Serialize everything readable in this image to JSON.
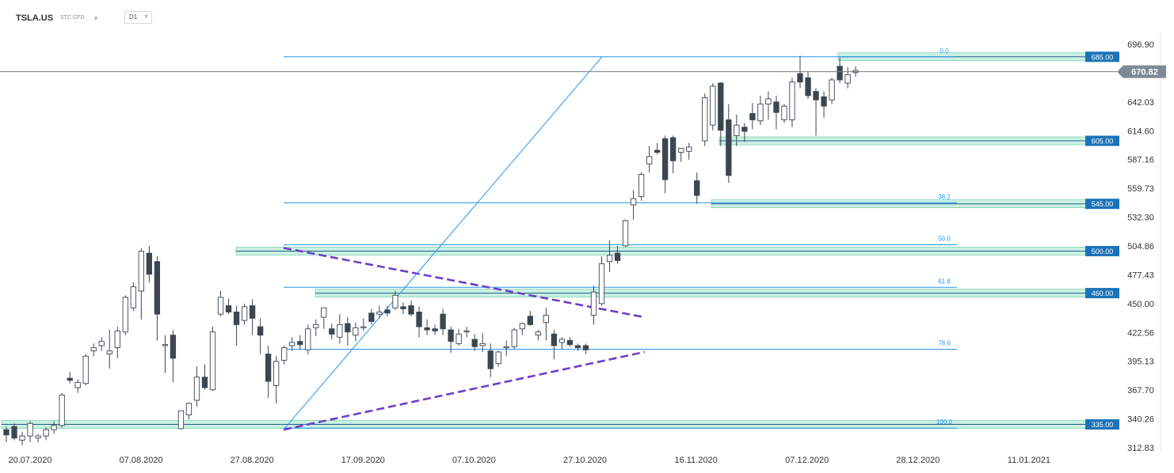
{
  "header": {
    "symbol": "TSLA.US",
    "instrument_type": "STC CFD",
    "timeframe": "D1",
    "icons": [
      "chevron-down-icon",
      "chevron-down-icon"
    ]
  },
  "chart_data": {
    "type": "candlestick",
    "instrument": "TSLA.US",
    "interval": "D1",
    "y_axis": {
      "ticks": [
        696.9,
        670.82,
        642.03,
        614.6,
        587.16,
        559.73,
        532.3,
        504.86,
        477.43,
        450.0,
        422.56,
        395.13,
        367.7,
        340.26,
        312.83
      ],
      "tick_labels": [
        "696.90",
        "670.82",
        "642.03",
        "614.60",
        "587.16",
        "559.73",
        "532.30",
        "504.86",
        "477.43",
        "450.00",
        "422.56",
        "395.13",
        "367.70",
        "340.26",
        "312.83"
      ],
      "range": [
        306,
        711
      ]
    },
    "x_axis": {
      "tick_labels": [
        "20.07.2020",
        "07.08.2020",
        "27.08.2020",
        "17.09.2020",
        "07.10.2020",
        "27.10.2020",
        "16.11.2020",
        "07.12.2020",
        "28.12.2020",
        "11.01.2021"
      ]
    },
    "current_price": {
      "value": 670.82,
      "label": "670.82"
    },
    "horizontal_levels": [
      {
        "value": 685.0,
        "label": "685.00"
      },
      {
        "value": 605.0,
        "label": "605.00"
      },
      {
        "value": 545.0,
        "label": "545.00"
      },
      {
        "value": 500.0,
        "label": "500.00"
      },
      {
        "value": 460.0,
        "label": "460.00"
      },
      {
        "value": 335.0,
        "label": "335.00"
      }
    ],
    "fibonacci": {
      "levels": [
        {
          "ratio": "0.0",
          "value": 685.0
        },
        {
          "ratio": "38.2",
          "value": 546.0
        },
        {
          "ratio": "50.0",
          "value": 506.0
        },
        {
          "ratio": "61.8",
          "value": 465.5
        },
        {
          "ratio": "78.6",
          "value": 406.6
        },
        {
          "ratio": "100.0",
          "value": 331.5
        }
      ]
    },
    "trendlines": [
      {
        "name": "triangle-upper",
        "from": {
          "x": 0.0,
          "y": 503.0
        },
        "to": {
          "x": 0.86,
          "y": 437.0
        }
      },
      {
        "name": "triangle-lower",
        "from": {
          "x": 0.0,
          "y": 330.0
        },
        "to": {
          "x": 0.86,
          "y": 404.0
        }
      },
      {
        "name": "fib-anchor-line",
        "from": {
          "x": 0.0,
          "y": 330.0
        },
        "to": {
          "x": 0.58,
          "y": 685.0
        }
      }
    ],
    "candles": [
      {
        "o": 330,
        "h": 333,
        "l": 318,
        "c": 325
      },
      {
        "o": 333,
        "h": 336,
        "l": 320,
        "c": 322
      },
      {
        "o": 320,
        "h": 328,
        "l": 315,
        "c": 324
      },
      {
        "o": 324,
        "h": 338,
        "l": 318,
        "c": 336
      },
      {
        "o": 322,
        "h": 326,
        "l": 318,
        "c": 324
      },
      {
        "o": 324,
        "h": 332,
        "l": 320,
        "c": 330
      },
      {
        "o": 330,
        "h": 338,
        "l": 326,
        "c": 334
      },
      {
        "o": 334,
        "h": 365,
        "l": 332,
        "c": 363
      },
      {
        "o": 379,
        "h": 385,
        "l": 374,
        "c": 377
      },
      {
        "o": 370,
        "h": 378,
        "l": 365,
        "c": 375
      },
      {
        "o": 374,
        "h": 402,
        "l": 372,
        "c": 400
      },
      {
        "o": 405,
        "h": 412,
        "l": 400,
        "c": 408
      },
      {
        "o": 410,
        "h": 418,
        "l": 405,
        "c": 414
      },
      {
        "o": 402,
        "h": 425,
        "l": 388,
        "c": 405
      },
      {
        "o": 408,
        "h": 428,
        "l": 398,
        "c": 424
      },
      {
        "o": 423,
        "h": 458,
        "l": 420,
        "c": 456
      },
      {
        "o": 446,
        "h": 470,
        "l": 443,
        "c": 466
      },
      {
        "o": 462,
        "h": 503,
        "l": 435,
        "c": 500
      },
      {
        "o": 498,
        "h": 505,
        "l": 470,
        "c": 478
      },
      {
        "o": 490,
        "h": 495,
        "l": 415,
        "c": 440
      },
      {
        "o": 410,
        "h": 420,
        "l": 384,
        "c": 411
      },
      {
        "o": 420,
        "h": 425,
        "l": 375,
        "c": 398
      },
      {
        "o": 331,
        "h": 348,
        "l": 330,
        "c": 348
      },
      {
        "o": 344,
        "h": 356,
        "l": 340,
        "c": 355
      },
      {
        "o": 358,
        "h": 390,
        "l": 352,
        "c": 380
      },
      {
        "o": 380,
        "h": 392,
        "l": 368,
        "c": 370
      },
      {
        "o": 368,
        "h": 428,
        "l": 367,
        "c": 423
      },
      {
        "o": 440,
        "h": 462,
        "l": 438,
        "c": 456
      },
      {
        "o": 448,
        "h": 455,
        "l": 440,
        "c": 442
      },
      {
        "o": 442,
        "h": 448,
        "l": 410,
        "c": 430
      },
      {
        "o": 434,
        "h": 450,
        "l": 430,
        "c": 447
      },
      {
        "o": 448,
        "h": 454,
        "l": 420,
        "c": 436
      },
      {
        "o": 428,
        "h": 436,
        "l": 402,
        "c": 420
      },
      {
        "o": 402,
        "h": 410,
        "l": 360,
        "c": 376
      },
      {
        "o": 372,
        "h": 400,
        "l": 355,
        "c": 395
      },
      {
        "o": 396,
        "h": 410,
        "l": 392,
        "c": 408
      },
      {
        "o": 410,
        "h": 418,
        "l": 405,
        "c": 413
      },
      {
        "o": 414,
        "h": 420,
        "l": 406,
        "c": 411
      },
      {
        "o": 406,
        "h": 430,
        "l": 402,
        "c": 426
      },
      {
        "o": 427,
        "h": 435,
        "l": 419,
        "c": 430
      },
      {
        "o": 437,
        "h": 445,
        "l": 426,
        "c": 446
      },
      {
        "o": 426,
        "h": 431,
        "l": 416,
        "c": 421
      },
      {
        "o": 418,
        "h": 440,
        "l": 412,
        "c": 430
      },
      {
        "o": 431,
        "h": 437,
        "l": 410,
        "c": 423
      },
      {
        "o": 420,
        "h": 432,
        "l": 414,
        "c": 427
      },
      {
        "o": 427,
        "h": 436,
        "l": 424,
        "c": 428
      },
      {
        "o": 441,
        "h": 445,
        "l": 430,
        "c": 433
      },
      {
        "o": 440,
        "h": 448,
        "l": 436,
        "c": 442
      },
      {
        "o": 444,
        "h": 448,
        "l": 438,
        "c": 441
      },
      {
        "o": 446,
        "h": 462,
        "l": 444,
        "c": 458
      },
      {
        "o": 447,
        "h": 451,
        "l": 440,
        "c": 445
      },
      {
        "o": 448,
        "h": 453,
        "l": 438,
        "c": 440
      },
      {
        "o": 442,
        "h": 447,
        "l": 418,
        "c": 428
      },
      {
        "o": 427,
        "h": 435,
        "l": 420,
        "c": 425
      },
      {
        "o": 426,
        "h": 430,
        "l": 420,
        "c": 424
      },
      {
        "o": 440,
        "h": 445,
        "l": 420,
        "c": 426
      },
      {
        "o": 425,
        "h": 428,
        "l": 403,
        "c": 414
      },
      {
        "o": 412,
        "h": 426,
        "l": 410,
        "c": 421
      },
      {
        "o": 423,
        "h": 428,
        "l": 418,
        "c": 424
      },
      {
        "o": 416,
        "h": 421,
        "l": 405,
        "c": 409
      },
      {
        "o": 410,
        "h": 422,
        "l": 404,
        "c": 412
      },
      {
        "o": 405,
        "h": 412,
        "l": 380,
        "c": 388
      },
      {
        "o": 393,
        "h": 405,
        "l": 390,
        "c": 404
      },
      {
        "o": 408,
        "h": 415,
        "l": 400,
        "c": 409
      },
      {
        "o": 409,
        "h": 427,
        "l": 407,
        "c": 425
      },
      {
        "o": 426,
        "h": 432,
        "l": 420,
        "c": 431
      },
      {
        "o": 438,
        "h": 443,
        "l": 429,
        "c": 430
      },
      {
        "o": 420,
        "h": 425,
        "l": 415,
        "c": 423
      },
      {
        "o": 432,
        "h": 446,
        "l": 415,
        "c": 439
      },
      {
        "o": 421,
        "h": 425,
        "l": 397,
        "c": 410
      },
      {
        "o": 413,
        "h": 418,
        "l": 407,
        "c": 416
      },
      {
        "o": 415,
        "h": 418,
        "l": 409,
        "c": 411
      },
      {
        "o": 410,
        "h": 412,
        "l": 405,
        "c": 408
      },
      {
        "o": 410,
        "h": 412,
        "l": 402,
        "c": 406
      },
      {
        "o": 439,
        "h": 467,
        "l": 430,
        "c": 461
      },
      {
        "o": 450,
        "h": 495,
        "l": 448,
        "c": 488
      },
      {
        "o": 490,
        "h": 510,
        "l": 480,
        "c": 496
      },
      {
        "o": 498,
        "h": 505,
        "l": 488,
        "c": 491
      },
      {
        "o": 505,
        "h": 530,
        "l": 504,
        "c": 529
      },
      {
        "o": 544,
        "h": 558,
        "l": 530,
        "c": 550
      },
      {
        "o": 552,
        "h": 575,
        "l": 548,
        "c": 573
      },
      {
        "o": 583,
        "h": 600,
        "l": 575,
        "c": 590
      },
      {
        "o": 596,
        "h": 603,
        "l": 592,
        "c": 594
      },
      {
        "o": 607,
        "h": 610,
        "l": 555,
        "c": 568
      },
      {
        "o": 608,
        "h": 610,
        "l": 574,
        "c": 586
      },
      {
        "o": 594,
        "h": 598,
        "l": 585,
        "c": 598
      },
      {
        "o": 595,
        "h": 603,
        "l": 587,
        "c": 599
      },
      {
        "o": 567,
        "h": 575,
        "l": 545,
        "c": 553
      },
      {
        "o": 605,
        "h": 650,
        "l": 600,
        "c": 646
      },
      {
        "o": 620,
        "h": 660,
        "l": 615,
        "c": 657
      },
      {
        "o": 660,
        "h": 661,
        "l": 600,
        "c": 615
      },
      {
        "o": 625,
        "h": 640,
        "l": 565,
        "c": 572
      },
      {
        "o": 610,
        "h": 630,
        "l": 600,
        "c": 620
      },
      {
        "o": 618,
        "h": 622,
        "l": 604,
        "c": 614
      },
      {
        "o": 631,
        "h": 641,
        "l": 616,
        "c": 625
      },
      {
        "o": 624,
        "h": 648,
        "l": 620,
        "c": 640
      },
      {
        "o": 640,
        "h": 652,
        "l": 625,
        "c": 645
      },
      {
        "o": 642,
        "h": 648,
        "l": 616,
        "c": 632
      },
      {
        "o": 625,
        "h": 640,
        "l": 622,
        "c": 638
      },
      {
        "o": 625,
        "h": 665,
        "l": 618,
        "c": 661
      },
      {
        "o": 669,
        "h": 686,
        "l": 655,
        "c": 661
      },
      {
        "o": 665,
        "h": 671,
        "l": 645,
        "c": 648
      },
      {
        "o": 652,
        "h": 655,
        "l": 610,
        "c": 644
      },
      {
        "o": 647,
        "h": 652,
        "l": 627,
        "c": 638
      },
      {
        "o": 644,
        "h": 665,
        "l": 640,
        "c": 663
      },
      {
        "o": 676,
        "h": 684,
        "l": 660,
        "c": 663
      },
      {
        "o": 660,
        "h": 675,
        "l": 655,
        "c": 668
      },
      {
        "o": 670,
        "h": 676,
        "l": 666,
        "c": 672
      }
    ]
  }
}
